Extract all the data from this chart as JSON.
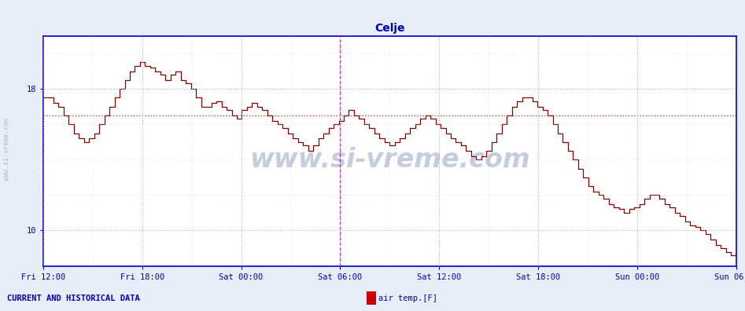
{
  "title": "Celje",
  "title_color": "#0000cc",
  "bg_color": "#e8eef8",
  "plot_bg_color": "#ffffff",
  "line_color": "#880000",
  "line_width": 1.0,
  "hline_value": 16.5,
  "hline_color": "#cc3333",
  "hline_style": ":",
  "vline_positions": [
    3.0,
    7.0
  ],
  "vline_color": "#cc00cc",
  "grid_color_major": "#ccaaaa",
  "grid_color_minor": "#ddcccc",
  "ytick_values": [
    10,
    18
  ],
  "ymin": 8.0,
  "ymax": 21.0,
  "xmin": 0.0,
  "xmax": 7.0,
  "xtick_labels": [
    "Fri 12:00",
    "Fri 18:00",
    "Sat 00:00",
    "Sat 06:00",
    "Sat 12:00",
    "Sat 18:00",
    "Sun 00:00",
    "Sun 06:00"
  ],
  "xtick_positions": [
    0,
    1,
    2,
    3,
    4,
    5,
    6,
    7
  ],
  "axis_color": "#0000cc",
  "tick_label_color": "#0000cc",
  "watermark": "www.si-vreme.com",
  "watermark_color": "#1a3a8a",
  "watermark_alpha": 0.25,
  "side_watermark": "www.si-vreme.com",
  "footer_left": "CURRENT AND HISTORICAL DATA",
  "legend_label": "air temp.[F]",
  "legend_color": "#cc0000",
  "figsize": [
    9.47,
    3.96
  ],
  "dpi": 100,
  "temperature_data": [
    17.5,
    17.5,
    17.2,
    17.0,
    16.5,
    16.0,
    15.5,
    15.2,
    15.0,
    15.2,
    15.5,
    16.0,
    16.5,
    17.0,
    17.5,
    18.0,
    18.5,
    19.0,
    19.3,
    19.5,
    19.3,
    19.2,
    19.0,
    18.8,
    18.5,
    18.8,
    19.0,
    18.5,
    18.3,
    18.0,
    17.5,
    17.0,
    17.0,
    17.2,
    17.3,
    17.0,
    16.8,
    16.5,
    16.3,
    16.8,
    17.0,
    17.2,
    17.0,
    16.8,
    16.5,
    16.2,
    16.0,
    15.8,
    15.5,
    15.2,
    15.0,
    14.8,
    14.5,
    14.8,
    15.2,
    15.5,
    15.8,
    16.0,
    16.2,
    16.5,
    16.8,
    16.5,
    16.3,
    16.0,
    15.8,
    15.5,
    15.2,
    15.0,
    14.8,
    15.0,
    15.2,
    15.5,
    15.8,
    16.0,
    16.3,
    16.5,
    16.3,
    16.0,
    15.8,
    15.5,
    15.2,
    15.0,
    14.8,
    14.5,
    14.2,
    14.0,
    14.2,
    14.5,
    15.0,
    15.5,
    16.0,
    16.5,
    17.0,
    17.3,
    17.5,
    17.5,
    17.3,
    17.0,
    16.8,
    16.5,
    16.0,
    15.5,
    15.0,
    14.5,
    14.0,
    13.5,
    13.0,
    12.5,
    12.2,
    12.0,
    11.8,
    11.5,
    11.3,
    11.2,
    11.0,
    11.2,
    11.3,
    11.5,
    11.8,
    12.0,
    12.0,
    11.8,
    11.5,
    11.3,
    11.0,
    10.8,
    10.5,
    10.3,
    10.2,
    10.0,
    9.8,
    9.5,
    9.2,
    9.0,
    8.8,
    8.6,
    8.5
  ]
}
